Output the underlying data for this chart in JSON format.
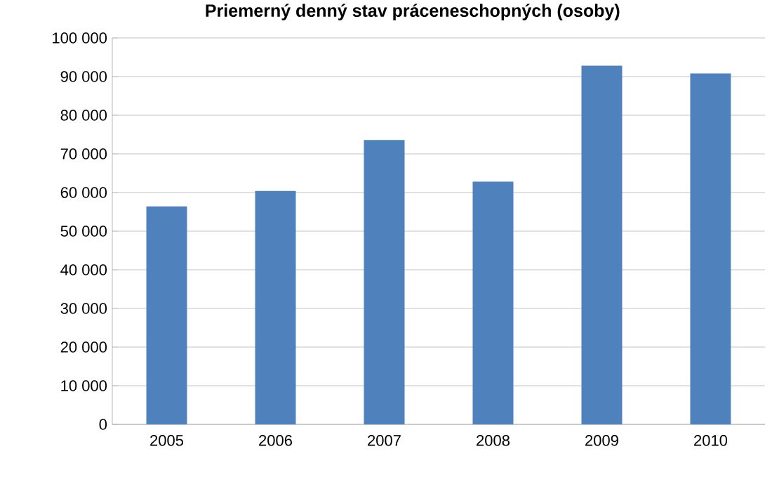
{
  "chart_data": {
    "type": "bar",
    "title": "Priemerný denný stav práceneschopných (osoby)",
    "categories": [
      "2005",
      "2006",
      "2007",
      "2008",
      "2009",
      "2010"
    ],
    "values": [
      56400,
      60400,
      73600,
      62800,
      92800,
      90800
    ],
    "color": "#4f81bd",
    "ylim": [
      0,
      100000
    ],
    "yticks": [
      {
        "value": 0,
        "label": "0"
      },
      {
        "value": 10000,
        "label": "10 000"
      },
      {
        "value": 20000,
        "label": "20 000"
      },
      {
        "value": 30000,
        "label": "30 000"
      },
      {
        "value": 40000,
        "label": "40 000"
      },
      {
        "value": 50000,
        "label": "50 000"
      },
      {
        "value": 60000,
        "label": "60 000"
      },
      {
        "value": 70000,
        "label": "70 000"
      },
      {
        "value": 80000,
        "label": "80 000"
      },
      {
        "value": 90000,
        "label": "90 000"
      },
      {
        "value": 100000,
        "label": "100 000"
      }
    ],
    "grid": true
  }
}
